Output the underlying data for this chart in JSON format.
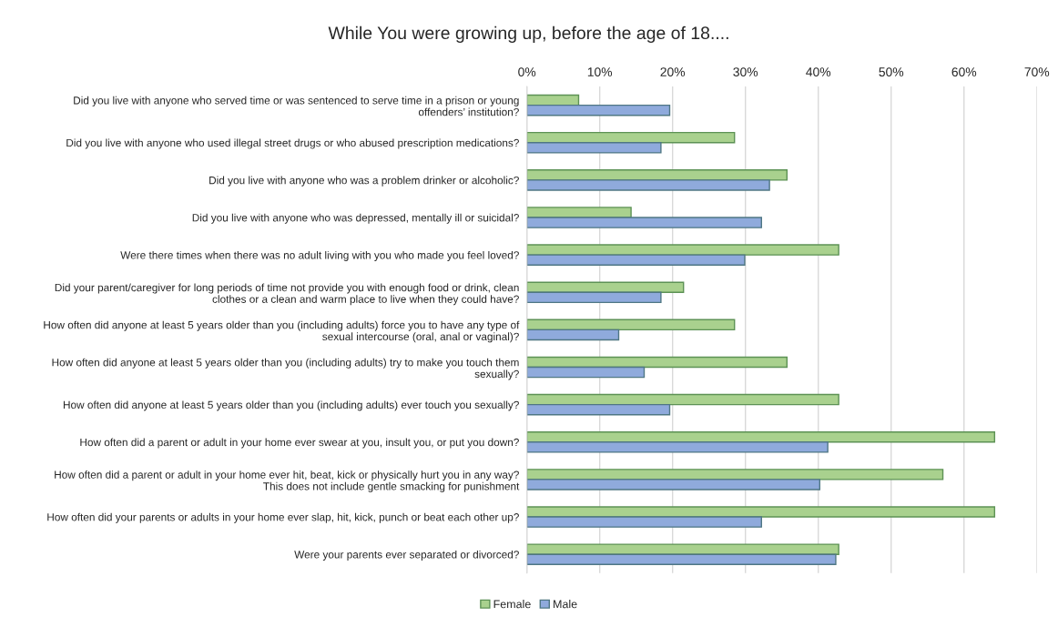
{
  "chart_data": {
    "type": "bar",
    "orientation": "horizontal",
    "title": "While You were growing up, before the age of 18....",
    "categories": [
      "Did you live with anyone who served time or was sentenced to serve time in a prison or young\noffenders’ institution?",
      "Did you live with anyone who used illegal street drugs or who abused prescription medications?",
      "Did you live with anyone who was a problem drinker or alcoholic?",
      "Did you live with anyone who was depressed, mentally ill or suicidal?",
      "Were there times when there was no adult living with you who made you feel loved?",
      "Did your parent/caregiver for long periods of time not provide you with enough food or drink, clean\nclothes or a clean and warm place to live when they could have?",
      "How often did anyone at least 5 years older than you (including adults) force you to have any type of\nsexual intercourse (oral, anal or vaginal)?",
      "How often did anyone at least 5 years older than you (including adults) try to make you touch them\nsexually?",
      "How often did anyone at least 5 years older than you (including adults) ever touch you sexually?",
      "How often did a parent or adult in your home ever swear at you, insult you, or put you down?",
      "How often did a parent or adult in your home ever hit, beat, kick or physically hurt you in any way?\nThis does not include gentle smacking for punishment",
      "How often did your parents or adults in your home ever slap, hit, kick, punch or beat each other up?",
      "Were your parents ever separated or divorced?"
    ],
    "series": [
      {
        "name": "Female",
        "color": "#a9d18e",
        "values": [
          7.1,
          28.5,
          35.7,
          14.3,
          42.8,
          21.5,
          28.5,
          35.7,
          42.8,
          64.2,
          57.1,
          64.2,
          42.8
        ]
      },
      {
        "name": "Male",
        "color": "#8faadc",
        "values": [
          19.6,
          18.4,
          33.3,
          32.2,
          29.9,
          18.4,
          12.6,
          16.1,
          19.6,
          41.3,
          40.2,
          32.2,
          42.4
        ]
      }
    ],
    "xlim": [
      0,
      70
    ],
    "xticks": [
      {
        "value": 0,
        "label": "0%"
      },
      {
        "value": 10,
        "label": "10%"
      },
      {
        "value": 20,
        "label": "20%"
      },
      {
        "value": 30,
        "label": "30%"
      },
      {
        "value": 40,
        "label": "40%"
      },
      {
        "value": 50,
        "label": "50%"
      },
      {
        "value": 60,
        "label": "60%"
      },
      {
        "value": 70,
        "label": "70%"
      }
    ],
    "grid": "x",
    "legend": "bottom"
  }
}
